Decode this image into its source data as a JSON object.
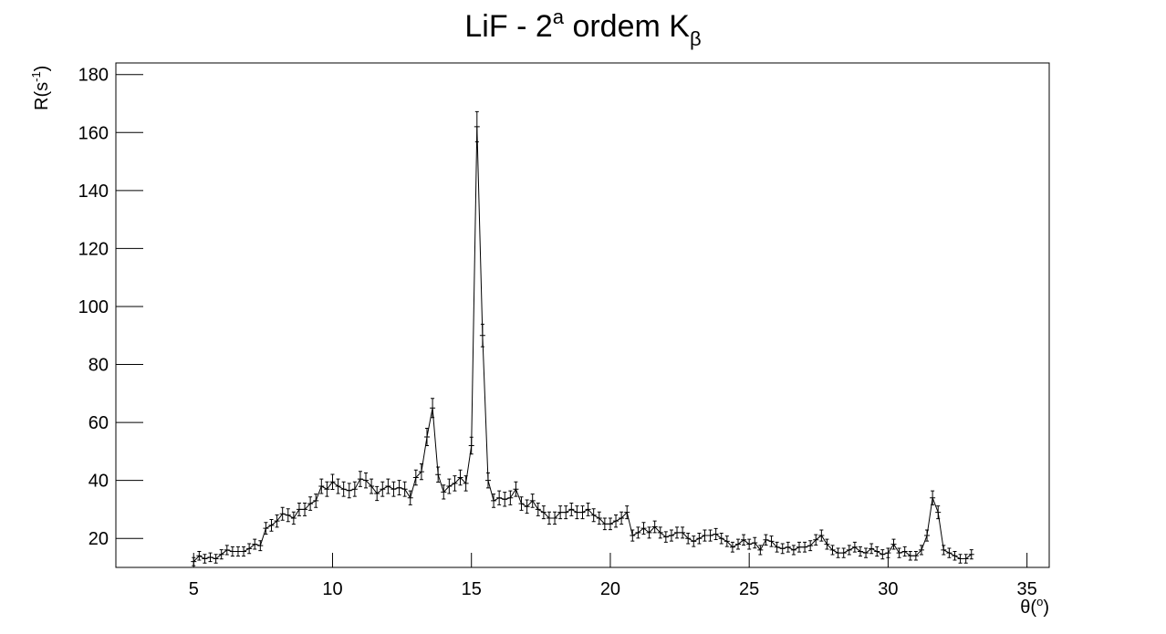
{
  "chart_data": {
    "type": "line",
    "title_parts": [
      "LiF - 2",
      "a",
      " ordem K",
      "β"
    ],
    "x_label_parts": [
      "θ(",
      "o",
      ")"
    ],
    "y_label_parts": [
      "R(s",
      "-1",
      ")"
    ],
    "xlim": [
      2.2,
      35.8
    ],
    "ylim": [
      10,
      184
    ],
    "xticks": [
      5,
      10,
      15,
      20,
      25,
      30,
      35
    ],
    "yticks": [
      20,
      40,
      60,
      80,
      100,
      120,
      140,
      160,
      180
    ],
    "x": [
      5.0,
      5.2,
      5.4,
      5.6,
      5.8,
      6.0,
      6.2,
      6.4,
      6.6,
      6.8,
      7.0,
      7.2,
      7.4,
      7.6,
      7.8,
      8.0,
      8.2,
      8.4,
      8.6,
      8.8,
      9.0,
      9.2,
      9.4,
      9.6,
      9.8,
      10.0,
      10.2,
      10.4,
      10.6,
      10.8,
      11.0,
      11.2,
      11.4,
      11.6,
      11.8,
      12.0,
      12.2,
      12.4,
      12.6,
      12.8,
      13.0,
      13.2,
      13.4,
      13.6,
      13.8,
      14.0,
      14.2,
      14.4,
      14.6,
      14.8,
      15.0,
      15.2,
      15.4,
      15.6,
      15.8,
      16.0,
      16.2,
      16.4,
      16.6,
      16.8,
      17.0,
      17.2,
      17.4,
      17.6,
      17.8,
      18.0,
      18.2,
      18.4,
      18.6,
      18.8,
      19.0,
      19.2,
      19.4,
      19.6,
      19.8,
      20.0,
      20.2,
      20.4,
      20.6,
      20.8,
      21.0,
      21.2,
      21.4,
      21.6,
      21.8,
      22.0,
      22.2,
      22.4,
      22.6,
      22.8,
      23.0,
      23.2,
      23.4,
      23.6,
      23.8,
      24.0,
      24.2,
      24.4,
      24.6,
      24.8,
      25.0,
      25.2,
      25.4,
      25.6,
      25.8,
      26.0,
      26.2,
      26.4,
      26.6,
      26.8,
      27.0,
      27.2,
      27.4,
      27.6,
      27.8,
      28.0,
      28.2,
      28.4,
      28.6,
      28.8,
      29.0,
      29.2,
      29.4,
      29.6,
      29.8,
      30.0,
      30.2,
      30.4,
      30.6,
      30.8,
      31.0,
      31.2,
      31.4,
      31.6,
      31.8,
      32.0,
      32.2,
      32.4,
      32.6,
      32.8,
      33.0
    ],
    "series": [
      {
        "color": "#000000",
        "values": [
          12,
          14,
          13,
          13.5,
          13,
          14.5,
          16,
          15.5,
          15.5,
          15.5,
          16.5,
          18,
          17.5,
          23.5,
          24.5,
          26,
          28.5,
          28,
          27,
          30,
          30,
          32,
          33,
          38,
          37,
          39.5,
          38,
          37,
          36.5,
          37,
          40.5,
          40,
          38,
          35.5,
          37,
          38,
          37,
          37.5,
          37,
          34,
          41,
          43,
          55,
          65,
          42,
          36,
          38,
          39,
          41,
          39,
          52,
          162,
          90,
          40,
          33,
          34,
          33.5,
          34,
          37,
          32,
          31,
          33,
          30,
          29,
          27,
          27,
          29,
          29,
          30,
          29,
          29,
          30,
          28,
          27,
          25,
          25,
          26,
          27,
          29,
          21,
          22,
          23.5,
          22,
          24,
          22,
          20.5,
          21,
          22,
          22,
          20,
          19,
          20,
          21,
          21,
          21.5,
          20,
          19,
          17,
          18,
          19.5,
          18,
          18.5,
          16,
          19.5,
          19,
          17,
          16.5,
          17,
          16,
          17,
          17,
          17.5,
          19.5,
          21,
          18,
          16,
          15,
          15,
          16,
          17,
          15.5,
          15,
          16.5,
          15.5,
          14.5,
          15,
          18,
          15,
          15.5,
          14,
          14,
          16,
          21,
          34,
          29,
          16,
          15,
          14,
          13,
          13,
          14.5
        ],
        "errors": [
          1.4,
          1.5,
          1.5,
          1.5,
          1.5,
          1.6,
          1.6,
          1.6,
          1.6,
          1.6,
          1.7,
          1.7,
          1.7,
          2.0,
          2.0,
          2.1,
          2.2,
          2.2,
          2.1,
          2.2,
          2.2,
          2.3,
          2.3,
          2.5,
          2.5,
          2.6,
          2.5,
          2.5,
          2.5,
          2.5,
          2.6,
          2.6,
          2.5,
          2.4,
          2.5,
          2.5,
          2.5,
          2.5,
          2.5,
          2.4,
          2.6,
          2.7,
          3.0,
          3.3,
          2.6,
          2.4,
          2.5,
          2.6,
          2.6,
          2.6,
          2.9,
          5.2,
          3.9,
          2.6,
          2.3,
          2.4,
          2.4,
          2.4,
          2.5,
          2.3,
          2.3,
          2.3,
          2.2,
          2.2,
          2.1,
          2.1,
          2.2,
          2.2,
          2.2,
          2.2,
          2.2,
          2.2,
          2.2,
          2.1,
          2.0,
          2.0,
          2.1,
          2.1,
          2.2,
          1.9,
          1.9,
          2.0,
          1.9,
          2.0,
          1.9,
          1.8,
          1.9,
          1.9,
          1.9,
          1.8,
          1.8,
          1.8,
          1.9,
          1.9,
          1.9,
          1.8,
          1.8,
          1.7,
          1.7,
          1.8,
          1.7,
          1.8,
          1.6,
          1.8,
          1.8,
          1.7,
          1.7,
          1.7,
          1.6,
          1.7,
          1.7,
          1.7,
          1.8,
          1.9,
          1.7,
          1.6,
          1.6,
          1.6,
          1.6,
          1.7,
          1.6,
          1.6,
          1.7,
          1.6,
          1.6,
          1.6,
          1.7,
          1.6,
          1.6,
          1.5,
          1.5,
          1.6,
          1.9,
          2.4,
          2.2,
          1.6,
          1.6,
          1.5,
          1.5,
          1.5,
          1.6
        ]
      }
    ]
  }
}
